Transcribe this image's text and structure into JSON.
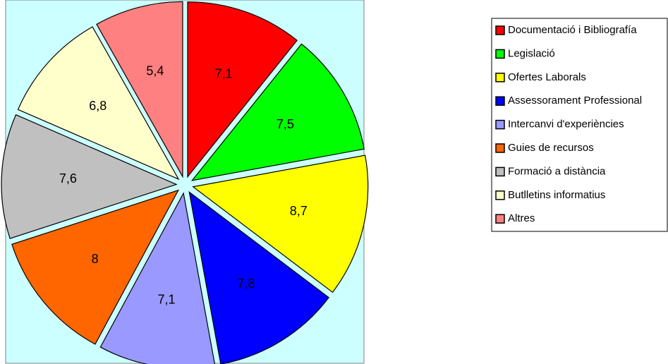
{
  "chart_data": {
    "type": "pie",
    "categories": [
      "Documentació i Bibliografía",
      "Legislació",
      "Ofertes Laborals",
      "Assessorament Professional",
      "Intercanvi d'experiències",
      "Guies de recursos",
      "Formació a distància",
      "Butlletins informatius",
      "Altres"
    ],
    "values": [
      7.1,
      7.5,
      8.7,
      7.8,
      7.1,
      8,
      7.6,
      6.8,
      5.4
    ],
    "value_labels": [
      "7,1",
      "7,5",
      "8,7",
      "7,8",
      "7,1",
      "8",
      "7,6",
      "6,8",
      "5,4"
    ],
    "colors": [
      "#ff0000",
      "#00ff00",
      "#ffff00",
      "#0000ff",
      "#9999ff",
      "#ff6600",
      "#c0c0c0",
      "#ffffcc",
      "#ff8080"
    ],
    "legend": "right"
  }
}
